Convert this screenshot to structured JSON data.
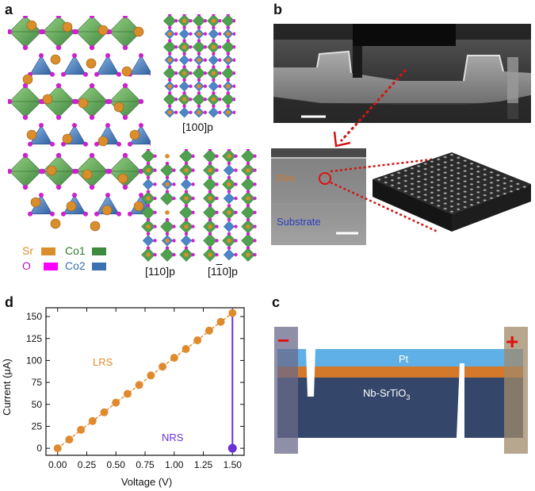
{
  "figure": {
    "panel_labels": {
      "a": "a",
      "b": "b",
      "c": "c",
      "d": "d"
    },
    "colors": {
      "sr": "#d98e2b",
      "o": "#d11ad1",
      "co1": "#3e8a3e",
      "co2": "#3a6fb0",
      "pt": "#5fb0e6",
      "orange_layer": "#d4782a",
      "nb_srtio3": "#34476b",
      "lrs": "#e08a2e",
      "nrs": "#6b2fd6"
    }
  },
  "panel_a": {
    "legend": {
      "sr": "Sr",
      "o": "O",
      "co1": "Co1",
      "co2": "Co2"
    },
    "projection_labels": {
      "p100": "[100]p",
      "p110": "[110]p",
      "p1m10": "[1",
      "p1m10_bar": "1",
      "p1m10_tail": "0]p"
    }
  },
  "panel_b": {
    "film_label": "Film",
    "substrate_label": "Substrate"
  },
  "panel_c": {
    "minus": "−",
    "plus": "+",
    "pt_label": "Pt",
    "nb_label_main": "Nb-SrTiO",
    "nb_label_sub": "3"
  },
  "panel_d": {
    "chart_data": {
      "type": "scatter",
      "xlabel": "Voltage (V)",
      "ylabel": "Current (μA)",
      "xlim": [
        -0.1,
        1.6
      ],
      "ylim": [
        -8,
        160
      ],
      "x_ticks": [
        "0.00",
        "0.25",
        "0.50",
        "0.75",
        "1.00",
        "1.25",
        "1.50"
      ],
      "x_tick_values": [
        0,
        0.25,
        0.5,
        0.75,
        1.0,
        1.25,
        1.5
      ],
      "y_ticks": [
        "0",
        "25",
        "50",
        "75",
        "100",
        "125",
        "150"
      ],
      "y_tick_values": [
        0,
        25,
        50,
        75,
        100,
        125,
        150
      ],
      "series": [
        {
          "name": "LRS",
          "x": [
            0.0,
            0.1,
            0.2,
            0.3,
            0.4,
            0.5,
            0.6,
            0.7,
            0.8,
            0.9,
            1.0,
            1.1,
            1.2,
            1.3,
            1.4,
            1.5
          ],
          "y": [
            0,
            10,
            21,
            31,
            41,
            52,
            62,
            72,
            83,
            93,
            103,
            113,
            123,
            134,
            144,
            154
          ]
        },
        {
          "name": "NRS",
          "x": [
            1.5
          ],
          "y": [
            0
          ]
        }
      ],
      "vertical_line": {
        "x": 1.5,
        "y_from": 0,
        "y_to": 154
      },
      "annotations": {
        "lrs": "LRS",
        "nrs": "NRS"
      }
    }
  }
}
